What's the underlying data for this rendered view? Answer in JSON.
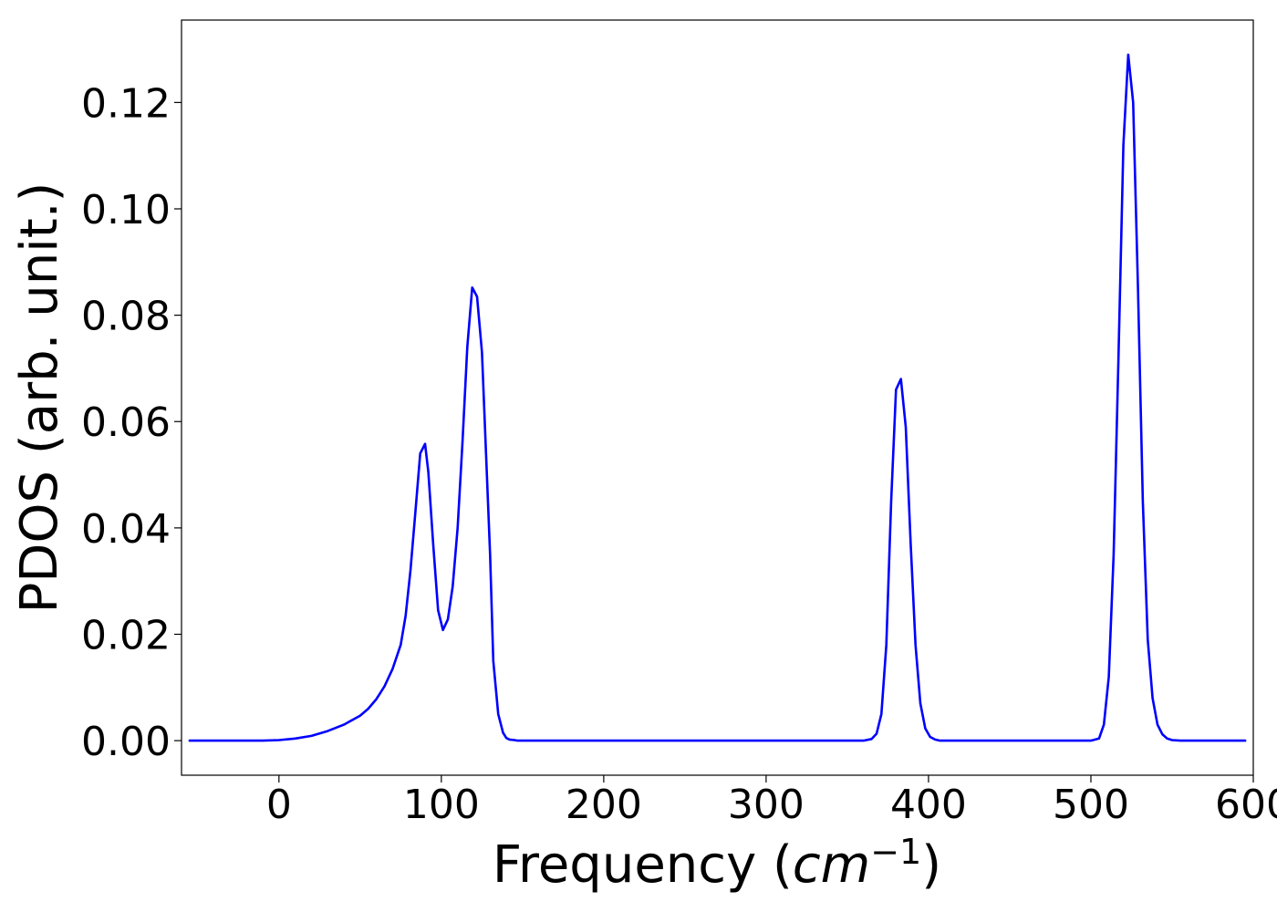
{
  "chart_data": {
    "type": "line",
    "title": "",
    "xlabel": "Frequency",
    "xlabel_unit_base": "cm",
    "xlabel_unit_exp": "−1",
    "ylabel": "PDOS (arb. unit.)",
    "xlim": [
      -60,
      600
    ],
    "ylim": [
      -0.0065,
      0.1355
    ],
    "xticks": [
      0,
      100,
      200,
      300,
      400,
      500,
      600
    ],
    "yticks": [
      0.0,
      0.02,
      0.04,
      0.06,
      0.08,
      0.1,
      0.12
    ],
    "xtick_labels": [
      "0",
      "100",
      "200",
      "300",
      "400",
      "500",
      "600"
    ],
    "ytick_labels": [
      "0.00",
      "0.02",
      "0.04",
      "0.06",
      "0.08",
      "0.10",
      "0.12"
    ],
    "grid": false,
    "legend": "none",
    "series": [
      {
        "color": "#0000ff",
        "x": [
          -55,
          -30,
          -10,
          0,
          10,
          20,
          30,
          40,
          50,
          55,
          60,
          65,
          70,
          75,
          78,
          81,
          84,
          87,
          90,
          92,
          95,
          98,
          101,
          104,
          107,
          110,
          113,
          116,
          119,
          122,
          125,
          127,
          130,
          132,
          135,
          138,
          140,
          142,
          145,
          147,
          150,
          155,
          200,
          300,
          360,
          365,
          368,
          371,
          374,
          377,
          380,
          383,
          386,
          389,
          392,
          395,
          398,
          401,
          404,
          407,
          410,
          420,
          500,
          505,
          508,
          511,
          514,
          517,
          520,
          523,
          526,
          529,
          532,
          535,
          538,
          541,
          544,
          547,
          550,
          555,
          560,
          595
        ],
        "y": [
          0,
          0,
          0,
          0.0001,
          0.0004,
          0.0009,
          0.0018,
          0.003,
          0.0047,
          0.006,
          0.0078,
          0.0102,
          0.0135,
          0.018,
          0.0235,
          0.032,
          0.043,
          0.054,
          0.0558,
          0.0505,
          0.037,
          0.0245,
          0.0208,
          0.0228,
          0.029,
          0.04,
          0.056,
          0.074,
          0.0852,
          0.0835,
          0.073,
          0.058,
          0.035,
          0.015,
          0.005,
          0.0015,
          0.0005,
          0.0002,
          0.0001,
          0,
          0,
          0,
          0,
          0,
          0,
          0.0003,
          0.0013,
          0.005,
          0.018,
          0.045,
          0.066,
          0.068,
          0.059,
          0.037,
          0.018,
          0.007,
          0.0023,
          0.0007,
          0.0002,
          0,
          0,
          0,
          0,
          0.0004,
          0.003,
          0.012,
          0.035,
          0.072,
          0.112,
          0.129,
          0.12,
          0.085,
          0.045,
          0.019,
          0.008,
          0.003,
          0.0012,
          0.0004,
          0.0001,
          0,
          0,
          0
        ]
      }
    ]
  }
}
